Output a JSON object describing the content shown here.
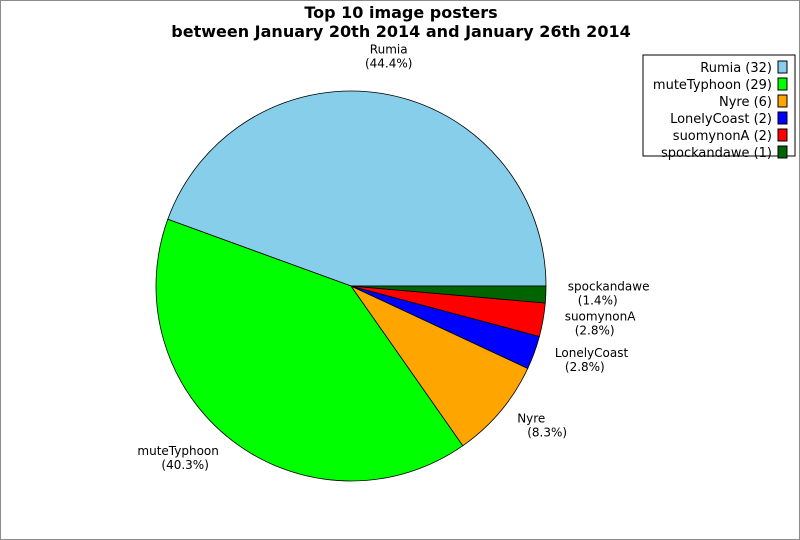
{
  "chart_data": {
    "type": "pie",
    "title": "Top 10 image posters",
    "subtitle": "between January 20th 2014 and January 26th 2014",
    "slices": [
      {
        "name": "Rumia",
        "value": 32,
        "percent": "(44.4%)",
        "legend": "Rumia (32)",
        "color": "#87ceeb"
      },
      {
        "name": "muteTyphoon",
        "value": 29,
        "percent": "(40.3%)",
        "legend": "muteTyphoon (29)",
        "color": "#00ff00"
      },
      {
        "name": "Nyre",
        "value": 6,
        "percent": "(8.3%)",
        "legend": "Nyre (6)",
        "color": "#ffa500"
      },
      {
        "name": "LonelyCoast",
        "value": 2,
        "percent": "(2.8%)",
        "legend": "LonelyCoast (2)",
        "color": "#0000ff"
      },
      {
        "name": "suomynonA",
        "value": 2,
        "percent": "(2.8%)",
        "legend": "suomynonA (2)",
        "color": "#ff0000"
      },
      {
        "name": "spockandawe",
        "value": 1,
        "percent": "(1.4%)",
        "legend": "spockandawe (1)",
        "color": "#006400"
      }
    ],
    "legend_position": "top-right"
  }
}
